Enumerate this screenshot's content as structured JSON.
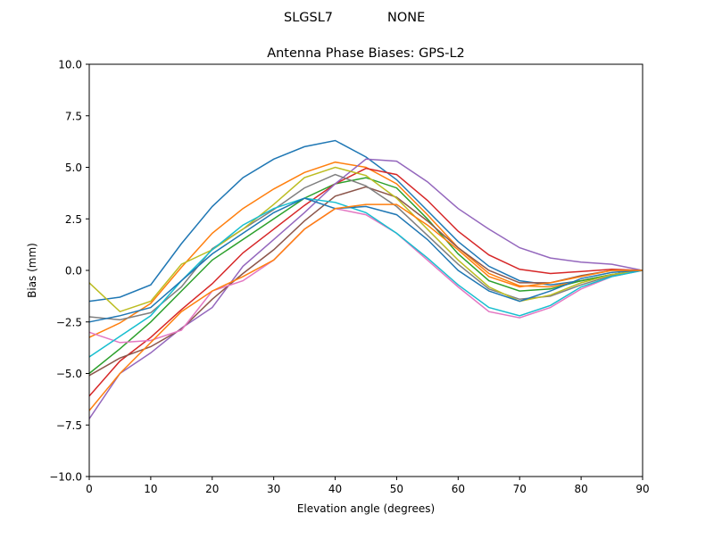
{
  "figure": {
    "suptitle_left": "SLGSL7",
    "suptitle_right": "NONE"
  },
  "chart_data": {
    "type": "line",
    "title": "Antenna Phase Biases: GPS-L2",
    "xlabel": "Elevation angle (degrees)",
    "ylabel": "Bias (mm)",
    "xlim": [
      0,
      90
    ],
    "ylim": [
      -10,
      10
    ],
    "xticks": [
      0,
      10,
      20,
      30,
      40,
      50,
      60,
      70,
      80,
      90
    ],
    "xtick_labels": [
      "0",
      "10",
      "20",
      "30",
      "40",
      "50",
      "60",
      "70",
      "80",
      "90"
    ],
    "yticks": [
      -10,
      -7.5,
      -5,
      -2.5,
      0,
      2.5,
      5,
      7.5,
      10
    ],
    "ytick_labels": [
      "−10.0",
      "−7.5",
      "−5.0",
      "−2.5",
      "0.0",
      "2.5",
      "5.0",
      "7.5",
      "10.0"
    ],
    "grid": false,
    "legend": "none",
    "colors": [
      "#1f77b4",
      "#ff7f0e",
      "#2ca02c",
      "#d62728",
      "#9467bd",
      "#8c564b",
      "#e377c2",
      "#7f7f7f",
      "#bcbd22",
      "#17becf"
    ],
    "x": [
      0,
      5,
      10,
      15,
      20,
      25,
      30,
      35,
      40,
      45,
      50,
      55,
      60,
      65,
      70,
      75,
      80,
      85,
      90
    ],
    "series": [
      {
        "values": [
          -1.5,
          -1.3,
          -0.7,
          1.3,
          3.1,
          4.5,
          5.4,
          6.0,
          6.3,
          5.5,
          4.4,
          2.9,
          1.4,
          0.2,
          -0.5,
          -0.7,
          -0.5,
          -0.2,
          0
        ]
      },
      {
        "values": [
          -3.25,
          -2.55,
          -1.6,
          0.15,
          1.8,
          3.0,
          3.95,
          4.75,
          5.25,
          5.0,
          4.2,
          2.7,
          1.1,
          -0.15,
          -0.75,
          -0.8,
          -0.5,
          -0.2,
          0
        ]
      },
      {
        "values": [
          -5.0,
          -3.8,
          -2.5,
          -1.0,
          0.5,
          1.5,
          2.5,
          3.5,
          4.2,
          4.5,
          4.0,
          2.5,
          0.8,
          -0.5,
          -1.0,
          -0.9,
          -0.5,
          -0.2,
          0
        ]
      },
      {
        "values": [
          -6.1,
          -4.4,
          -3.25,
          -1.9,
          -0.65,
          0.85,
          2.0,
          3.15,
          4.2,
          4.95,
          4.65,
          3.4,
          1.9,
          0.75,
          0.05,
          -0.15,
          -0.05,
          0.05,
          0
        ]
      },
      {
        "values": [
          -7.2,
          -5.0,
          -4.0,
          -2.8,
          -1.8,
          0.2,
          1.5,
          2.8,
          4.2,
          5.4,
          5.3,
          4.3,
          3.0,
          2.0,
          1.1,
          0.6,
          0.4,
          0.3,
          0
        ]
      },
      {
        "values": [
          -5.1,
          -4.25,
          -3.7,
          -2.85,
          -1.4,
          -0.15,
          1.0,
          2.4,
          3.6,
          4.05,
          3.55,
          2.4,
          1.1,
          0,
          -0.6,
          -0.6,
          -0.25,
          0,
          0
        ]
      },
      {
        "values": [
          -3.0,
          -3.5,
          -3.4,
          -2.9,
          -1.0,
          -0.5,
          0.5,
          2.0,
          3.0,
          2.7,
          1.8,
          0.5,
          -0.8,
          -2.0,
          -2.3,
          -1.8,
          -0.9,
          -0.3,
          0
        ]
      },
      {
        "values": [
          -2.25,
          -2.4,
          -2.05,
          -0.8,
          1.05,
          2.0,
          2.95,
          4.0,
          4.65,
          4.1,
          3.1,
          1.7,
          0.3,
          -0.9,
          -1.4,
          -1.25,
          -0.7,
          -0.25,
          0
        ]
      },
      {
        "values": [
          -0.6,
          -2.0,
          -1.5,
          0.3,
          1.0,
          2.0,
          3.2,
          4.5,
          5.0,
          4.6,
          3.5,
          2.0,
          0.5,
          -0.8,
          -1.5,
          -1.2,
          -0.6,
          -0.2,
          0
        ]
      },
      {
        "values": [
          -4.2,
          -3.2,
          -2.2,
          -0.5,
          1.0,
          2.2,
          3.0,
          3.5,
          3.3,
          2.8,
          1.8,
          0.6,
          -0.7,
          -1.8,
          -2.2,
          -1.7,
          -0.8,
          -0.3,
          0
        ]
      },
      {
        "values": [
          -2.5,
          -2.2,
          -1.8,
          -0.5,
          0.8,
          1.8,
          2.8,
          3.5,
          3.0,
          3.1,
          2.7,
          1.5,
          0.0,
          -1.0,
          -1.5,
          -1.0,
          -0.4,
          -0.1,
          0
        ]
      },
      {
        "values": [
          -6.8,
          -5.0,
          -3.5,
          -2.0,
          -1.0,
          -0.3,
          0.5,
          2.0,
          3.0,
          3.2,
          3.2,
          2.2,
          1.0,
          -0.3,
          -0.8,
          -0.6,
          -0.3,
          0,
          0
        ]
      }
    ]
  }
}
